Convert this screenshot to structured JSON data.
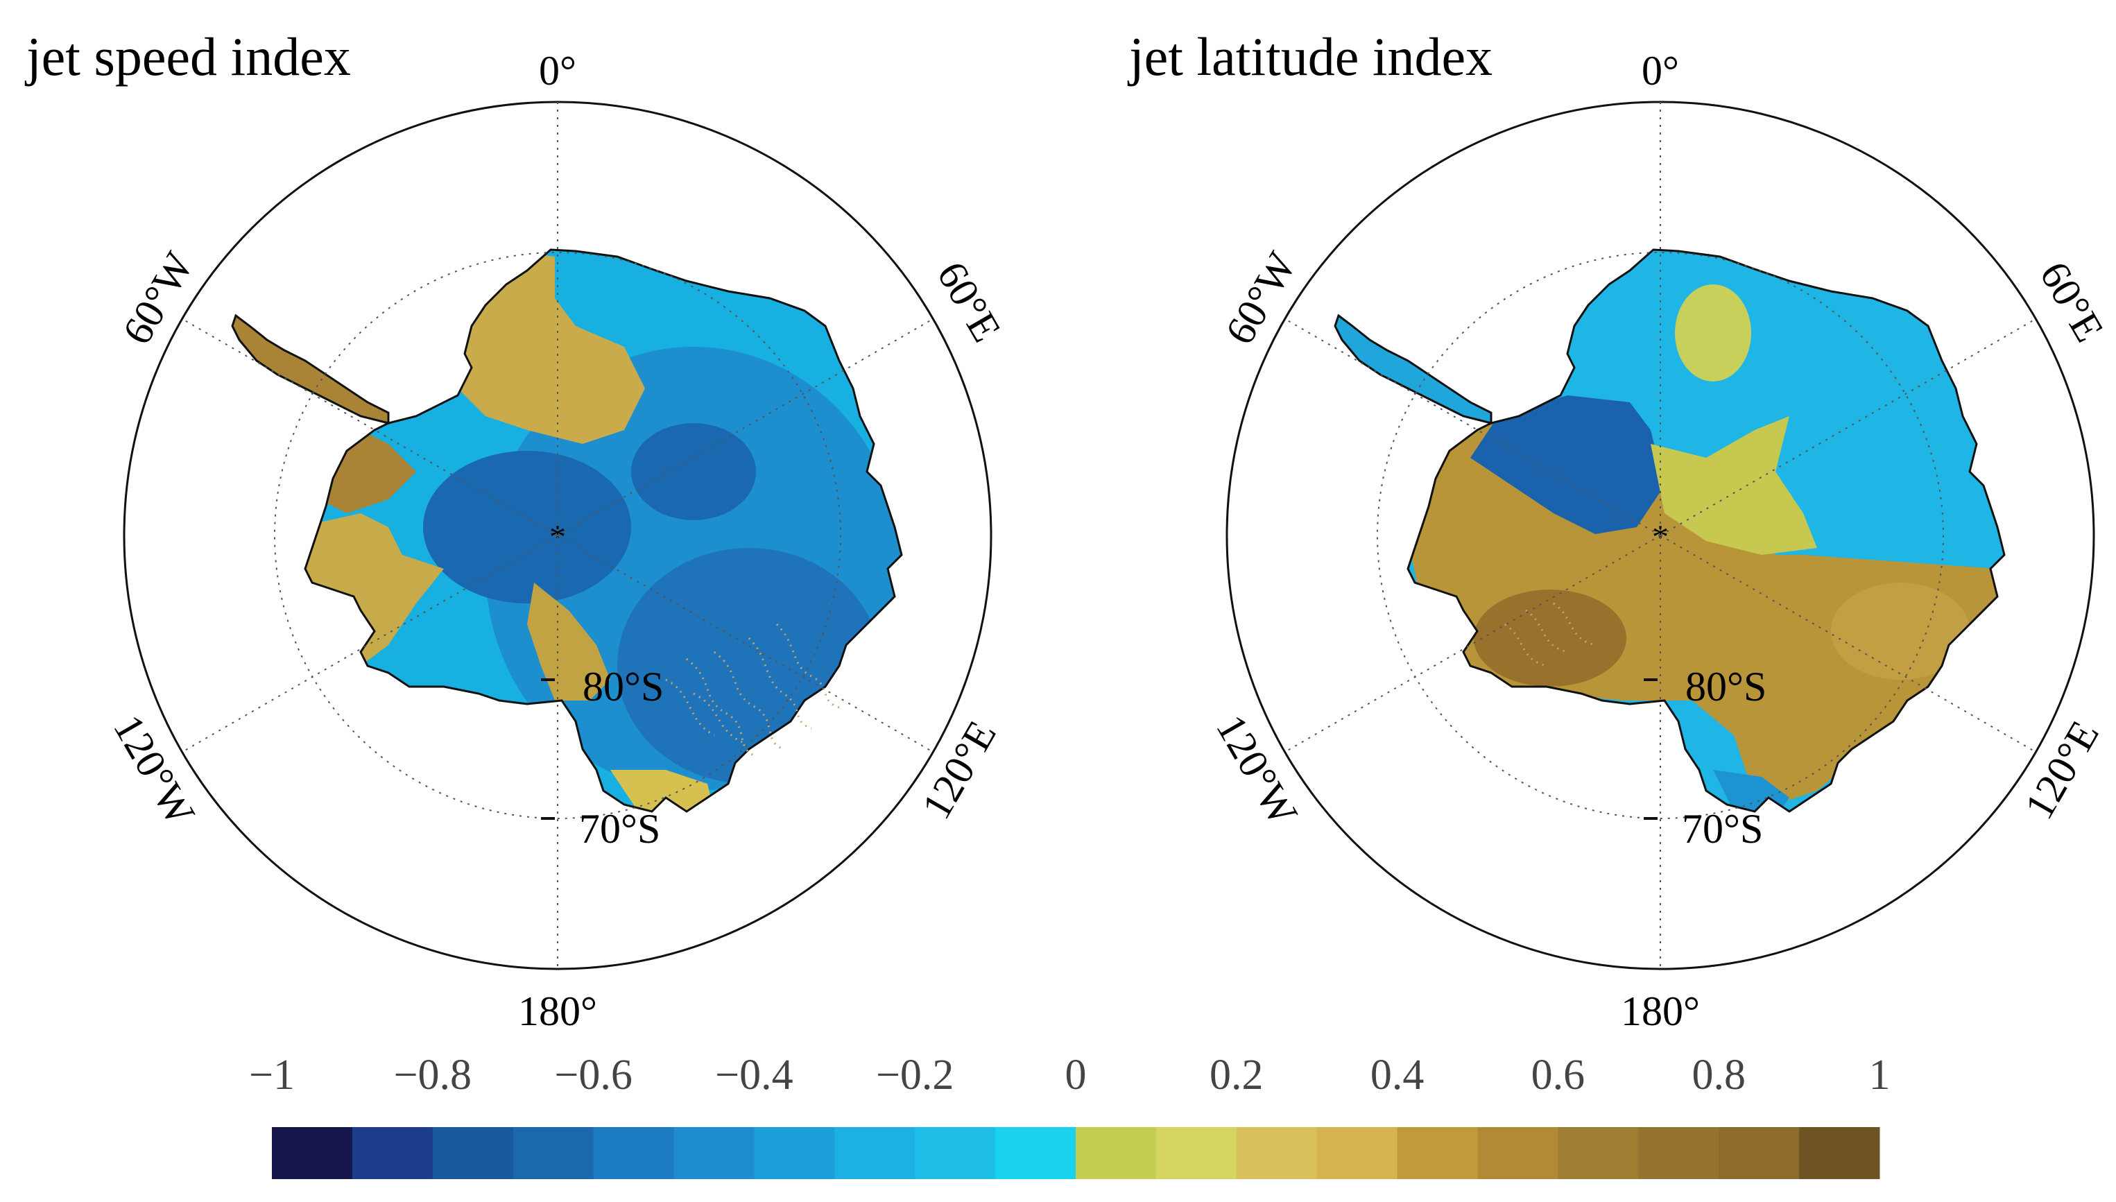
{
  "panels": [
    {
      "title": "jet speed index",
      "lon_labels": {
        "top": "0°",
        "bottom": "180°",
        "upper_left": "60°W",
        "upper_right": "60°E",
        "lower_left": "120°W",
        "lower_right": "120°E"
      },
      "lat_labels": {
        "inner": "80°S",
        "outer": "70°S"
      },
      "regions": {
        "peninsula": "#a98436",
        "wedge_west_coast": "#c7aa4a",
        "queen_maud_land": "#c9ab4c",
        "interior": "#1d8fcf",
        "pole_region": "#1a68b0",
        "east_interior": "#1e73b9",
        "ross_ice_shelf": "#c2a343",
        "ross_sea_coast": "#d6c150",
        "coast_east": "#17b0e0"
      }
    },
    {
      "title": "jet latitude index",
      "lon_labels": {
        "top": "0°",
        "bottom": "180°",
        "upper_left": "60°W",
        "upper_right": "60°E",
        "lower_left": "120°W",
        "lower_right": "120°E"
      },
      "lat_labels": {
        "inner": "80°S",
        "outer": "70°S"
      },
      "regions": {
        "peninsula": "#21a6dc",
        "west_antarctica": "#b89539",
        "marie_byrd": "#98712c",
        "weddell_blue": "#1a62ac",
        "dronning_maud": "#c6d05a",
        "central_yellow": "#c7c84f",
        "east_brown": "#c39f44",
        "coast_east": "#1fb6e6",
        "ross_blue": "#1d93d2"
      }
    }
  ],
  "colorbar": {
    "ticks": [
      "−1",
      "−0.8",
      "−0.6",
      "−0.4",
      "−0.2",
      "0",
      "0.2",
      "0.4",
      "0.6",
      "0.8",
      "1"
    ],
    "colors": [
      "#15174a",
      "#1b3d8a",
      "#19599e",
      "#1b68af",
      "#1d7bc2",
      "#1e8ccf",
      "#1c9ed8",
      "#1cb1e2",
      "#1dbfe8",
      "#1ad2ef",
      "#c2cd52",
      "#d7d562",
      "#d9c05a",
      "#d5b450",
      "#bf9c39",
      "#b08a34",
      "#9f7e33",
      "#96742f",
      "#8c6b2b",
      "#6f5423"
    ]
  }
}
